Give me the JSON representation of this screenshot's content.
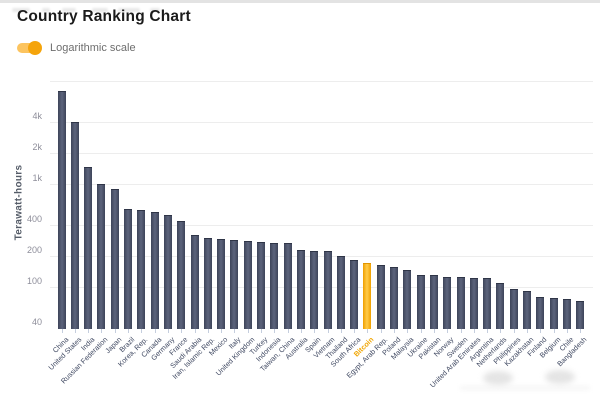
{
  "header": {
    "title": "Country Ranking Chart"
  },
  "controls": {
    "toggle_label": "Logarithmic scale",
    "toggle_state": "on"
  },
  "colors": {
    "accent": "#f5a40b",
    "bar": "#4a5168",
    "bar_highlight": "#f7a800",
    "grid": "#ededed",
    "axis_text": "#8e8e9a",
    "x_label_text": "#414a63",
    "title_text": "#1b1b1b"
  },
  "chart_data": {
    "type": "bar",
    "title": "Country Ranking Chart",
    "xlabel": "",
    "ylabel": "Terawatt-hours",
    "scale": "log",
    "ylim": [
      40,
      10400
    ],
    "grid": "on",
    "legend_position": "none",
    "yticks": [
      {
        "value": 4000,
        "label": "4k"
      },
      {
        "value": 2000,
        "label": "2k"
      },
      {
        "value": 1000,
        "label": "1k"
      },
      {
        "value": 400,
        "label": "400"
      },
      {
        "value": 200,
        "label": "200"
      },
      {
        "value": 100,
        "label": "100"
      },
      {
        "value": 40,
        "label": "40"
      }
    ],
    "gridline_values": [
      10000,
      4000,
      2000,
      1000,
      400,
      200,
      100
    ],
    "highlight_category": "Bitcoin",
    "categories": [
      "China",
      "United States",
      "India",
      "Russian Federation",
      "Japan",
      "Brazil",
      "Korea, Rep.",
      "Canada",
      "Germany",
      "France",
      "Saudi Arabia",
      "Iran, Islamic Rep.",
      "Mexico",
      "Italy",
      "United Kingdom",
      "Turkey",
      "Indonesia",
      "Taiwan, China",
      "Australia",
      "Spain",
      "Vietnam",
      "Thailand",
      "South Africa",
      "Bitcoin",
      "Egypt, Arab Rep.",
      "Poland",
      "Malaysia",
      "Ukraine",
      "Pakistan",
      "Norway",
      "Sweden",
      "United Arab Emirates",
      "Argentina",
      "Netherlands",
      "Philippines",
      "Kazakhstan",
      "Finland",
      "Belgium",
      "Chile",
      "Bangladesh"
    ],
    "values": [
      8000,
      3980,
      1460,
      1000,
      890,
      565,
      556,
      531,
      497,
      434,
      321,
      296,
      293,
      287,
      282,
      276,
      270,
      265,
      231,
      225,
      222,
      198,
      183,
      171,
      163,
      155,
      147,
      131,
      130,
      125,
      124,
      123,
      121,
      109,
      95,
      91,
      80,
      79,
      77,
      73
    ]
  }
}
